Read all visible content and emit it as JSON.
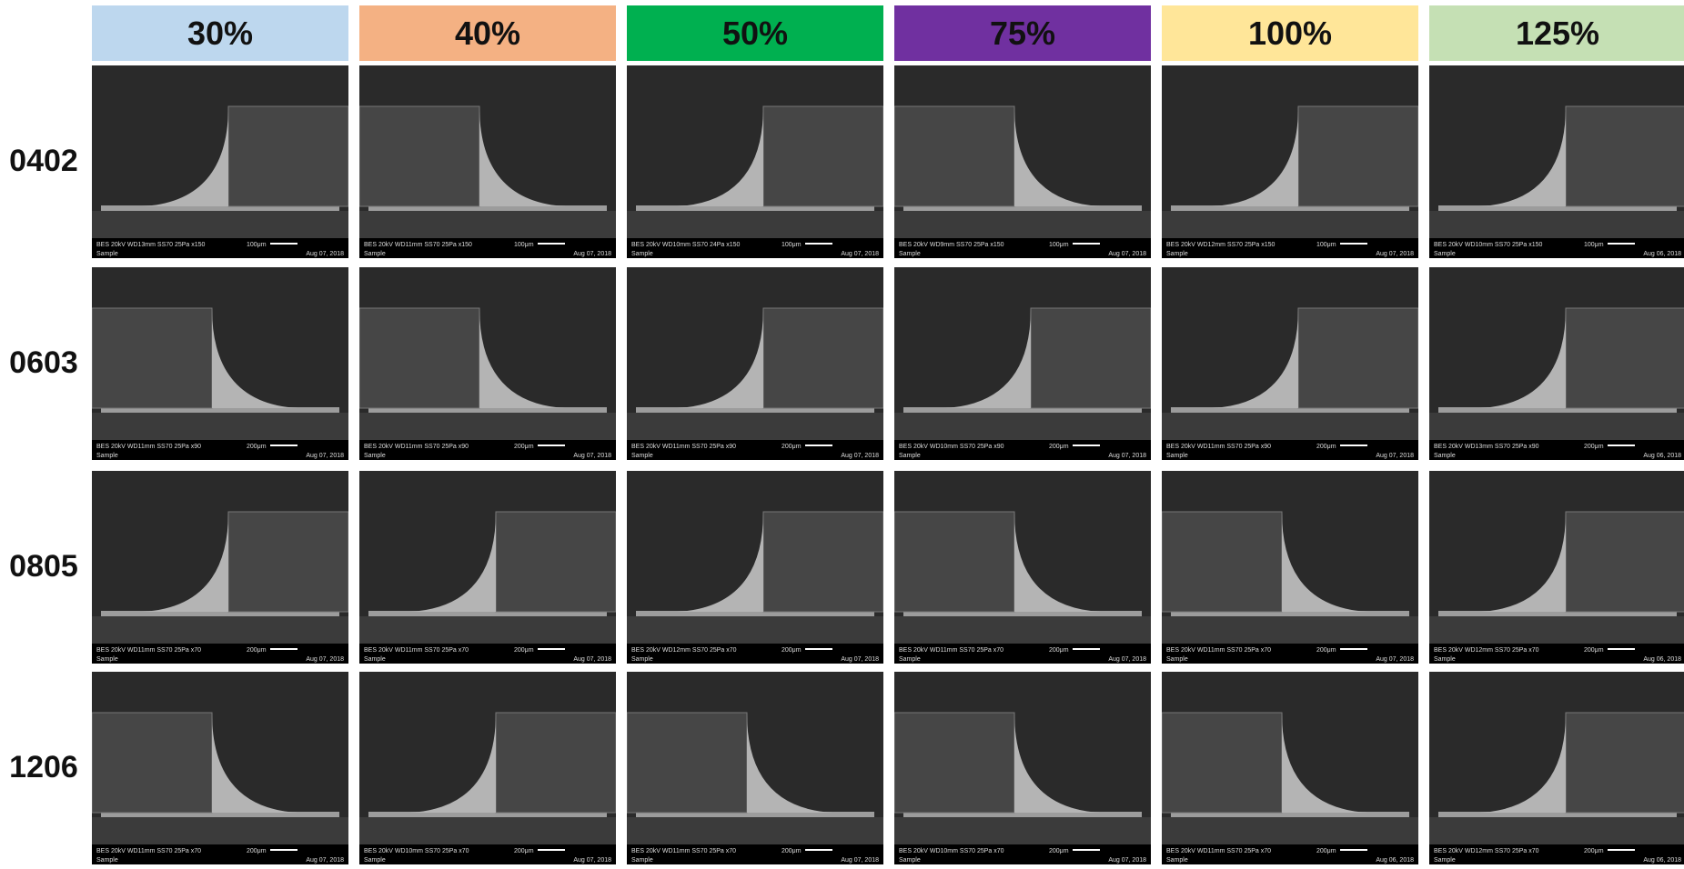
{
  "columns": [
    "30%",
    "40%",
    "50%",
    "75%",
    "100%",
    "125%"
  ],
  "rows": [
    {
      "label": "0402",
      "cells": [
        {
          "info": "BES 20kV WD13mm SS70 25Pa x150",
          "scale": "100μm",
          "date": "Aug 07, 2018",
          "sample": "Sample"
        },
        {
          "info": "BES 20kV WD11mm SS70 25Pa x150",
          "scale": "100μm",
          "date": "Aug 07, 2018",
          "sample": "Sample"
        },
        {
          "info": "BES 20kV WD10mm SS70 24Pa x150",
          "scale": "100μm",
          "date": "Aug 07, 2018",
          "sample": "Sample"
        },
        {
          "info": "BES 20kV WD9mm SS70 25Pa x150",
          "scale": "100μm",
          "date": "Aug 07, 2018",
          "sample": "Sample"
        },
        {
          "info": "BES 20kV WD12mm SS70 25Pa x150",
          "scale": "100μm",
          "date": "Aug 07, 2018",
          "sample": "Sample"
        },
        {
          "info": "BES 20kV WD10mm SS70 25Pa x150",
          "scale": "100μm",
          "date": "Aug 06, 2018",
          "sample": "Sample"
        }
      ]
    },
    {
      "label": "0603",
      "cells": [
        {
          "info": "BES 20kV WD11mm SS70 25Pa x90",
          "scale": "200μm",
          "date": "Aug 07, 2018",
          "sample": "Sample"
        },
        {
          "info": "BES 20kV WD11mm SS70 25Pa x90",
          "scale": "200μm",
          "date": "Aug 07, 2018",
          "sample": "Sample"
        },
        {
          "info": "BES 20kV WD11mm SS70 25Pa x90",
          "scale": "200μm",
          "date": "Aug 07, 2018",
          "sample": "Sample"
        },
        {
          "info": "BES 20kV WD10mm SS70 25Pa x90",
          "scale": "200μm",
          "date": "Aug 07, 2018",
          "sample": "Sample"
        },
        {
          "info": "BES 20kV WD11mm SS70 25Pa x90",
          "scale": "200μm",
          "date": "Aug 07, 2018",
          "sample": "Sample"
        },
        {
          "info": "BES 20kV WD13mm SS70 25Pa x90",
          "scale": "200μm",
          "date": "Aug 06, 2018",
          "sample": "Sample"
        }
      ]
    },
    {
      "label": "0805",
      "cells": [
        {
          "info": "BES 20kV WD11mm SS70 25Pa x70",
          "scale": "200μm",
          "date": "Aug 07, 2018",
          "sample": "Sample"
        },
        {
          "info": "BES 20kV WD11mm SS70 25Pa x70",
          "scale": "200μm",
          "date": "Aug 07, 2018",
          "sample": "Sample"
        },
        {
          "info": "BES 20kV WD12mm SS70 25Pa x70",
          "scale": "200μm",
          "date": "Aug 07, 2018",
          "sample": "Sample"
        },
        {
          "info": "BES 20kV WD11mm SS70 25Pa x70",
          "scale": "200μm",
          "date": "Aug 07, 2018",
          "sample": "Sample"
        },
        {
          "info": "BES 20kV WD11mm SS70 25Pa x70",
          "scale": "200μm",
          "date": "Aug 07, 2018",
          "sample": "Sample"
        },
        {
          "info": "BES 20kV WD12mm SS70 25Pa x70",
          "scale": "200μm",
          "date": "Aug 06, 2018",
          "sample": "Sample"
        }
      ]
    },
    {
      "label": "1206",
      "cells": [
        {
          "info": "BES 20kV WD11mm SS70 25Pa x70",
          "scale": "200μm",
          "date": "Aug 07, 2018",
          "sample": "Sample"
        },
        {
          "info": "BES 20kV WD10mm SS70 25Pa x70",
          "scale": "200μm",
          "date": "Aug 07, 2018",
          "sample": "Sample"
        },
        {
          "info": "BES 20kV WD11mm SS70 25Pa x70",
          "scale": "200μm",
          "date": "Aug 07, 2018",
          "sample": "Sample"
        },
        {
          "info": "BES 20kV WD10mm SS70 25Pa x70",
          "scale": "200μm",
          "date": "Aug 07, 2018",
          "sample": "Sample"
        },
        {
          "info": "BES 20kV WD11mm SS70 25Pa x70",
          "scale": "200μm",
          "date": "Aug 06, 2018",
          "sample": "Sample"
        },
        {
          "info": "BES 20kV WD12mm SS70 25Pa x70",
          "scale": "200μm",
          "date": "Aug 06, 2018",
          "sample": "Sample"
        }
      ]
    }
  ]
}
